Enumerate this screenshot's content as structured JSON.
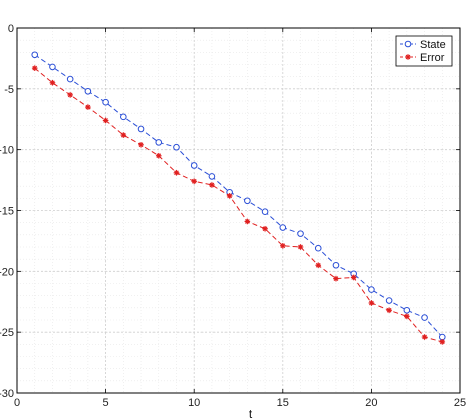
{
  "chart_data": {
    "type": "line",
    "title": "",
    "xlabel": "t",
    "ylabel": "",
    "xlim": [
      0,
      25
    ],
    "ylim": [
      -30,
      0
    ],
    "xticks": [
      0,
      5,
      10,
      15,
      20,
      25
    ],
    "yticks": [
      -30,
      -25,
      -20,
      -15,
      -10,
      -5,
      0
    ],
    "xtick_labels": [
      "0",
      "5",
      "10",
      "15",
      "20",
      "25"
    ],
    "ytick_labels": [
      "-30",
      "-25",
      "-20",
      "-15",
      "-10",
      "-5",
      "0"
    ],
    "grid": true,
    "minor_grid": true,
    "legend_position": "top-right",
    "x": [
      1,
      2,
      3,
      4,
      5,
      6,
      7,
      8,
      9,
      10,
      11,
      12,
      13,
      14,
      15,
      16,
      17,
      18,
      19,
      20,
      21,
      22,
      23,
      24
    ],
    "series": [
      {
        "name": "State",
        "color": "#2b4fd6",
        "marker": "circle",
        "line_style": "dashed",
        "values": [
          -2.2,
          -3.2,
          -4.2,
          -5.2,
          -6.1,
          -7.3,
          -8.3,
          -9.4,
          -9.8,
          -11.3,
          -12.2,
          -13.5,
          -14.2,
          -15.1,
          -16.4,
          -16.9,
          -18.1,
          -19.5,
          -20.2,
          -21.5,
          -22.4,
          -23.2,
          -23.8,
          -25.4
        ]
      },
      {
        "name": "Error",
        "color": "#e02020",
        "marker": "asterisk",
        "line_style": "dashed",
        "values": [
          -3.3,
          -4.5,
          -5.5,
          -6.5,
          -7.6,
          -8.8,
          -9.6,
          -10.5,
          -11.9,
          -12.6,
          -12.9,
          -13.8,
          -15.9,
          -16.5,
          -17.9,
          -18.0,
          -19.5,
          -20.6,
          -20.5,
          -22.6,
          -23.2,
          -23.7,
          -25.4,
          -25.8
        ]
      }
    ]
  }
}
